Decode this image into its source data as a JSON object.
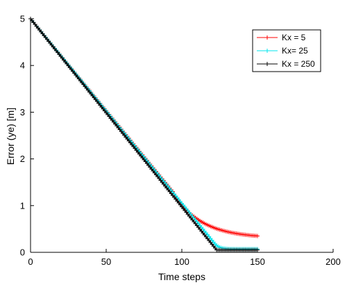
{
  "chart_data": {
    "type": "line",
    "title": "",
    "xlabel": "Time steps",
    "ylabel": "Error (ye) [m]",
    "xlim": [
      0,
      200
    ],
    "ylim": [
      0,
      5
    ],
    "xticks": [
      0,
      50,
      100,
      150,
      200
    ],
    "yticks": [
      0,
      1,
      2,
      3,
      4,
      5
    ],
    "grid": false,
    "legend_position": "top-right",
    "marker": "+",
    "series": [
      {
        "name": "Kx = 5",
        "color": "#ff0000",
        "model": "exponential",
        "x": [
          0,
          94,
          150
        ],
        "y": [
          5.0,
          1.3,
          0.35
        ]
      },
      {
        "name": "Kx= 25",
        "color": "#00e5ee",
        "model": "linear-then-decay",
        "x": [
          0,
          122,
          150
        ],
        "y": [
          5.0,
          0.18,
          0.07
        ]
      },
      {
        "name": "Kx = 250",
        "color": "#000000",
        "model": "linear-then-flat",
        "x": [
          0,
          123,
          150
        ],
        "y": [
          5.0,
          0.05,
          0.05
        ]
      }
    ]
  }
}
